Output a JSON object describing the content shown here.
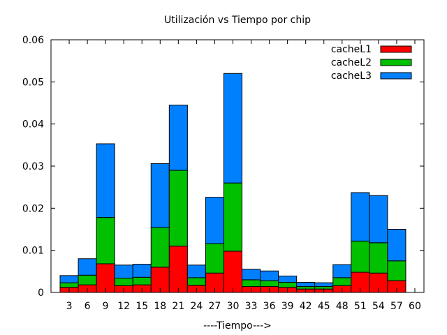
{
  "chart_data": {
    "type": "bar",
    "stacked": true,
    "title": "Utilización vs Tiempo por chip",
    "xlabel": "----Tiempo--->",
    "ylabel": "",
    "ylim": [
      0,
      0.06
    ],
    "yticks": [
      "0",
      "0.01",
      "0.02",
      "0.03",
      "0.04",
      "0.05",
      "0.06"
    ],
    "categories": [
      "3",
      "6",
      "9",
      "12",
      "15",
      "18",
      "21",
      "24",
      "27",
      "30",
      "33",
      "36",
      "39",
      "42",
      "45",
      "48",
      "51",
      "54",
      "57",
      "60"
    ],
    "legend_position": "top-right",
    "series": [
      {
        "name": "cacheL1",
        "color": "#ff0000",
        "values": [
          0.0012,
          0.0018,
          0.0068,
          0.0016,
          0.0018,
          0.006,
          0.011,
          0.0017,
          0.0046,
          0.0098,
          0.0014,
          0.0014,
          0.0012,
          0.0008,
          0.0008,
          0.0016,
          0.0048,
          0.0046,
          0.0028,
          0
        ]
      },
      {
        "name": "cacheL2",
        "color": "#00c000",
        "values": [
          0.0011,
          0.0023,
          0.011,
          0.0018,
          0.0018,
          0.0094,
          0.018,
          0.0018,
          0.007,
          0.0162,
          0.0016,
          0.0014,
          0.0012,
          0.0006,
          0.0006,
          0.0019,
          0.0074,
          0.0072,
          0.0047,
          0
        ]
      },
      {
        "name": "cacheL3",
        "color": "#0080ff",
        "values": [
          0.0017,
          0.0039,
          0.0175,
          0.0031,
          0.0031,
          0.0152,
          0.0155,
          0.003,
          0.011,
          0.026,
          0.0025,
          0.0023,
          0.0015,
          0.001,
          0.0009,
          0.0031,
          0.0115,
          0.0112,
          0.0075,
          0
        ]
      }
    ]
  }
}
